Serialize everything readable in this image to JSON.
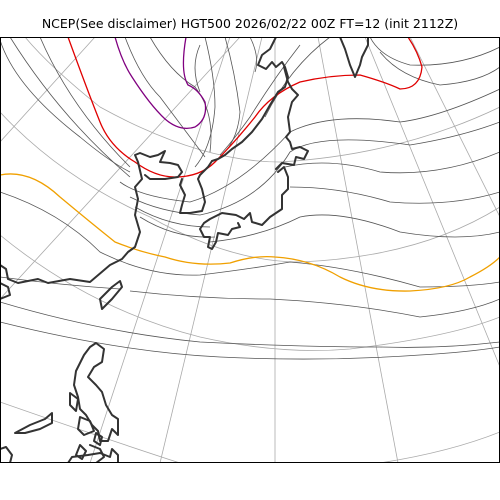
{
  "title": "NCEP(See disclaimer) HGT500 2026/02/22 00Z FT=12 (init 2112Z)",
  "map": {
    "field": "HGT500",
    "projection": "polar stereographic",
    "colors": {
      "contour": "#555555",
      "graticule": "#aaaaaa",
      "coastline": "#333333",
      "contour_red": "#e00000",
      "contour_orange": "#f0a000",
      "contour_purple": "#800080",
      "frame": "#000000"
    }
  }
}
